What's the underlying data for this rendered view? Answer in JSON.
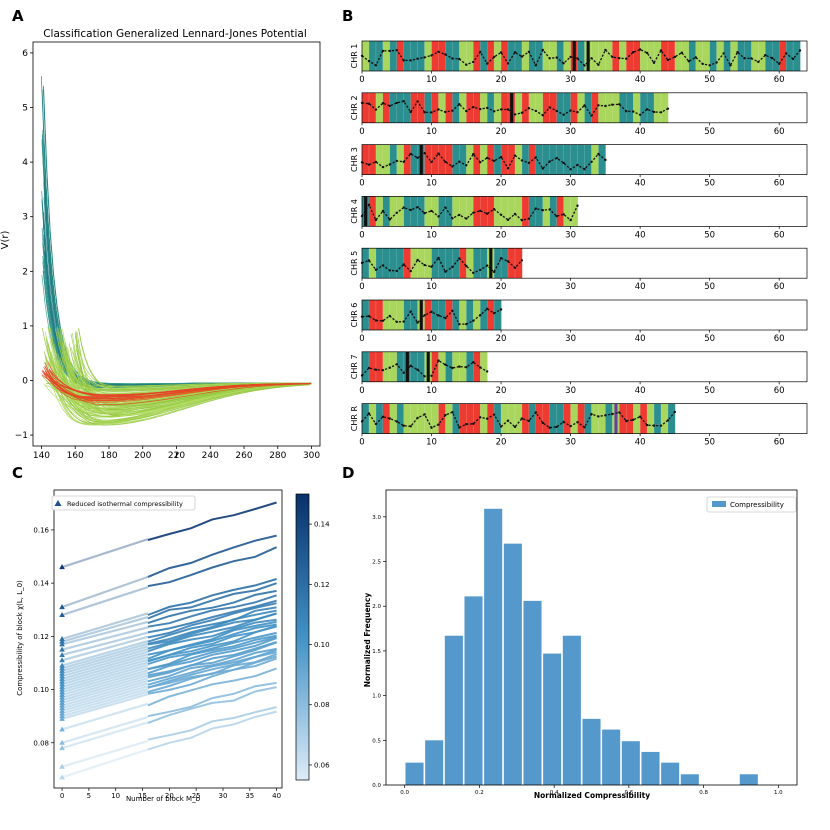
{
  "panels": {
    "a": {
      "letter": "A"
    },
    "b": {
      "letter": "B"
    },
    "c": {
      "letter": "C"
    },
    "d": {
      "letter": "D"
    }
  },
  "colors": {
    "teal": "#2b8f8f",
    "green": "#a9d65c",
    "red": "#ee3b32",
    "black": "#111111",
    "purple": "#6b3fa0",
    "hist": "#5599cc"
  },
  "chart_data": [
    {
      "panel": "A",
      "type": "line",
      "title": "Classification Generalized Lennard-Jones Potential",
      "xlabel": "r",
      "ylabel": "V(r)",
      "xlim": [
        135,
        305
      ],
      "ylim": [
        -1.2,
        6.2
      ],
      "xticks": [
        140,
        160,
        180,
        200,
        220,
        240,
        260,
        280,
        300
      ],
      "yticks": [
        -1,
        0,
        1,
        2,
        3,
        4,
        5,
        6
      ],
      "grid": false,
      "series": [
        {
          "class": "teal",
          "count": 45,
          "r_start_range": [
            140,
            142
          ],
          "v_start_range": [
            1.8,
            5.9
          ],
          "well_depth_range": [
            -0.15,
            -0.05
          ]
        },
        {
          "class": "green",
          "count": 110,
          "r_start_range": [
            140,
            162
          ],
          "v_start_range": [
            -0.1,
            1.0
          ],
          "well_depth_range": [
            -0.85,
            -0.1
          ]
        },
        {
          "class": "red",
          "count": 20,
          "r_start_range": [
            140,
            145
          ],
          "v_start_range": [
            0.1,
            0.35
          ],
          "well_depth_range": [
            -0.45,
            -0.25
          ]
        }
      ]
    },
    {
      "panel": "B",
      "type": "heatmap",
      "xlim": [
        0,
        64
      ],
      "xticks": [
        0,
        10,
        20,
        30,
        40,
        50,
        60
      ],
      "rows": [
        {
          "label": "CHR 1",
          "length": 63
        },
        {
          "label": "CHR 2",
          "length": 44
        },
        {
          "label": "CHR 3",
          "length": 35
        },
        {
          "label": "CHR 4",
          "length": 31
        },
        {
          "label": "CHR 5",
          "length": 23
        },
        {
          "label": "CHR 6",
          "length": 20
        },
        {
          "label": "CHR 7",
          "length": 18
        },
        {
          "label": "CHR R",
          "length": 45
        }
      ],
      "legend": []
    },
    {
      "panel": "C",
      "type": "line",
      "xlabel": "Number of block M_b",
      "ylabel": "Compressibility of block χ(L, L_0)",
      "xlim": [
        -1.5,
        41
      ],
      "ylim": [
        0.063,
        0.175
      ],
      "xticks": [
        0,
        5,
        10,
        15,
        20,
        25,
        30,
        35,
        40
      ],
      "yticks": [
        0.08,
        0.1,
        0.12,
        0.14,
        0.16
      ],
      "legend": [
        "Reduced isothermal compressibility"
      ],
      "legend_position": "top-left",
      "colorbar": {
        "min": 0.055,
        "max": 0.15,
        "ticks": [
          0.06,
          0.08,
          0.1,
          0.12,
          0.14
        ],
        "colormap": "Blues"
      },
      "x_blocks": [
        16,
        20,
        24,
        28,
        32,
        36,
        40
      ],
      "series_start_values": [
        0.146,
        0.131,
        0.128,
        0.119,
        0.118,
        0.117,
        0.115,
        0.113,
        0.111,
        0.109,
        0.108,
        0.107,
        0.106,
        0.105,
        0.104,
        0.103,
        0.102,
        0.101,
        0.1,
        0.099,
        0.098,
        0.097,
        0.096,
        0.095,
        0.094,
        0.093,
        0.092,
        0.091,
        0.09,
        0.089,
        0.085,
        0.08,
        0.078,
        0.071,
        0.067
      ],
      "series_end_values": [
        0.171,
        0.158,
        0.153,
        0.142,
        0.14,
        0.137,
        0.135,
        0.133,
        0.132,
        0.131,
        0.13,
        0.129,
        0.128,
        0.127,
        0.126,
        0.125,
        0.124,
        0.123,
        0.122,
        0.121,
        0.12,
        0.119,
        0.118,
        0.117,
        0.116,
        0.115,
        0.114,
        0.113,
        0.112,
        0.111,
        0.108,
        0.103,
        0.101,
        0.094,
        0.092
      ]
    },
    {
      "panel": "D",
      "type": "bar",
      "xlabel": "Normalized Compressibility",
      "ylabel": "Normalized Frequency",
      "xlim": [
        -0.05,
        1.05
      ],
      "ylim": [
        0,
        3.3
      ],
      "xticks": [
        0.0,
        0.2,
        0.4,
        0.6,
        0.8,
        1.0
      ],
      "yticks": [
        0.0,
        0.5,
        1.0,
        1.5,
        2.0,
        2.5,
        3.0
      ],
      "legend": [
        "Compressibility"
      ],
      "legend_position": "top-right",
      "bin_width": 0.05263,
      "bin_starts": [
        0.0,
        0.0526,
        0.1053,
        0.1579,
        0.2105,
        0.2632,
        0.3158,
        0.3684,
        0.4211,
        0.4737,
        0.5263,
        0.5789,
        0.6316,
        0.6842,
        0.7368,
        0.7895,
        0.8421,
        0.8947,
        0.9474
      ],
      "values": [
        0.25,
        0.5,
        1.67,
        2.11,
        3.09,
        2.7,
        2.06,
        1.47,
        1.67,
        0.74,
        0.62,
        0.49,
        0.37,
        0.25,
        0.12,
        0.0,
        0.0,
        0.12,
        0.0
      ]
    }
  ]
}
